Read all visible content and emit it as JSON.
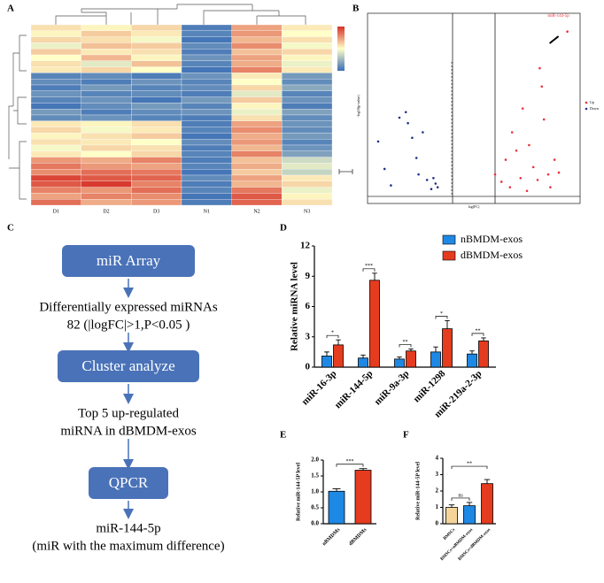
{
  "chart_data": [
    {
      "panel": "A",
      "type": "heatmap",
      "columns": [
        "D1",
        "D2",
        "D3",
        "N1",
        "N2",
        "N3"
      ],
      "values": [
        [
          0.3,
          0.1,
          0.4,
          -1.8,
          0.9,
          0.2
        ],
        [
          0.1,
          0.5,
          0.2,
          -1.7,
          1.0,
          0.0
        ],
        [
          0.4,
          0.3,
          -0.1,
          -1.9,
          0.7,
          0.3
        ],
        [
          -0.2,
          0.6,
          0.5,
          -1.6,
          1.1,
          -0.1
        ],
        [
          0.5,
          0.2,
          0.3,
          -1.8,
          0.6,
          0.4
        ],
        [
          0.0,
          0.7,
          0.1,
          -1.5,
          0.9,
          0.1
        ],
        [
          0.3,
          -0.3,
          0.6,
          -1.7,
          0.8,
          -0.2
        ],
        [
          0.2,
          0.4,
          0.0,
          -1.9,
          1.2,
          0.2
        ],
        [
          -1.7,
          -1.6,
          -1.8,
          -1.5,
          0.2,
          -1.4
        ],
        [
          -1.6,
          -1.8,
          -1.5,
          -1.7,
          0.0,
          -1.6
        ],
        [
          -1.8,
          -1.4,
          -1.7,
          -1.6,
          0.4,
          -1.2
        ],
        [
          -1.5,
          -1.7,
          -1.6,
          -1.8,
          -0.3,
          -1.7
        ],
        [
          -1.7,
          -1.5,
          -1.9,
          -1.4,
          0.5,
          -1.5
        ],
        [
          -1.9,
          -1.6,
          -1.4,
          -1.7,
          0.1,
          -1.8
        ],
        [
          -1.4,
          -1.8,
          -1.6,
          -1.5,
          -0.2,
          -1.3
        ],
        [
          -1.6,
          -1.5,
          -1.7,
          -1.8,
          0.3,
          -1.6
        ],
        [
          0.2,
          0.1,
          0.3,
          -1.8,
          0.9,
          -1.5
        ],
        [
          0.4,
          -0.1,
          0.2,
          -1.7,
          1.1,
          -1.6
        ],
        [
          0.1,
          0.3,
          0.5,
          -1.9,
          0.8,
          -1.4
        ],
        [
          0.3,
          0.2,
          0.0,
          -1.6,
          1.0,
          -1.7
        ],
        [
          -0.1,
          0.4,
          0.3,
          -1.8,
          0.7,
          -1.5
        ],
        [
          0.2,
          0.0,
          0.4,
          -1.7,
          1.2,
          -1.3
        ],
        [
          1.0,
          0.8,
          1.2,
          -1.8,
          0.6,
          -0.5
        ],
        [
          1.3,
          1.0,
          0.9,
          -1.7,
          0.8,
          -0.3
        ],
        [
          1.1,
          1.4,
          1.3,
          -1.9,
          0.5,
          -0.6
        ],
        [
          1.8,
          1.6,
          1.5,
          -1.6,
          0.9,
          0.2
        ],
        [
          1.6,
          1.9,
          1.2,
          -1.8,
          0.7,
          0.4
        ],
        [
          1.2,
          1.0,
          1.4,
          -1.7,
          1.3,
          -0.2
        ],
        [
          0.9,
          1.2,
          1.1,
          -1.9,
          1.6,
          0.1
        ],
        [
          1.4,
          0.8,
          1.0,
          -1.8,
          1.5,
          0.3
        ]
      ]
    },
    {
      "panel": "B",
      "type": "scatter",
      "xlabel": "log(FC)",
      "ylabel": "-log10(p-value)",
      "xlim": [
        -5,
        5
      ],
      "ylim": [
        0,
        10
      ],
      "vlines": [
        -1,
        1
      ],
      "annotation": "miR-144-5p",
      "series": [
        {
          "name": "Up",
          "color": "#e8323c",
          "x": [
            1.0,
            1.3,
            1.5,
            1.7,
            1.8,
            2.0,
            2.2,
            2.3,
            2.5,
            2.6,
            2.8,
            3.0,
            3.1,
            3.2,
            3.3,
            3.5,
            3.6,
            3.8,
            4.0,
            4.4
          ],
          "y": [
            1.2,
            0.8,
            2.0,
            0.5,
            3.5,
            2.5,
            1.0,
            4.8,
            0.3,
            2.8,
            1.6,
            0.9,
            7.0,
            6.0,
            4.2,
            1.2,
            0.5,
            2.0,
            1.3,
            9.0
          ]
        },
        {
          "name": "Down",
          "color": "#22308c",
          "x": [
            -4.5,
            -4.2,
            -3.9,
            -3.5,
            -3.2,
            -3.1,
            -2.9,
            -2.7,
            -2.6,
            -2.2,
            -2.0,
            -1.9,
            -1.7,
            -2.4,
            -1.8
          ],
          "y": [
            3.0,
            1.5,
            0.6,
            4.3,
            4.6,
            4.0,
            3.2,
            2.1,
            1.2,
            0.9,
            0.4,
            1.0,
            0.5,
            3.5,
            0.7
          ]
        }
      ]
    },
    {
      "panel": "D",
      "type": "bar",
      "ylabel": "Relative miRNA level",
      "categories": [
        "miR-16-3p",
        "miR-144-5p",
        "miR-9a-3p",
        "miR-1298",
        "miR-219a-2-3p"
      ],
      "ylim": [
        0,
        12
      ],
      "yticks": [
        0,
        3,
        6,
        9,
        12
      ],
      "series": [
        {
          "name": "nBMDM-exos",
          "color": "#1e88e5",
          "values": [
            1.1,
            0.9,
            0.8,
            1.5,
            1.3
          ],
          "errors": [
            0.4,
            0.3,
            0.2,
            0.5,
            0.3
          ]
        },
        {
          "name": "dBMDM-exos",
          "color": "#e53b1f",
          "values": [
            2.2,
            8.6,
            1.6,
            3.8,
            2.6
          ],
          "errors": [
            0.5,
            0.7,
            0.2,
            0.8,
            0.3
          ]
        }
      ],
      "significance": [
        "*",
        "***",
        "**",
        "*",
        "**"
      ]
    },
    {
      "panel": "E",
      "type": "bar",
      "ylabel": "Relative miR-144-5P level",
      "categories": [
        "nBMDMs",
        "dBMDMs"
      ],
      "values": [
        1.02,
        1.68
      ],
      "errors": [
        0.08,
        0.05
      ],
      "colors": [
        "#1e88e5",
        "#e53b1f"
      ],
      "ylim": [
        0,
        2
      ],
      "yticks": [
        {
          "value": 0,
          "label": "0.0"
        },
        {
          "value": 0.5,
          "label": "0.5"
        },
        {
          "value": 1,
          "label": "1.0"
        },
        {
          "value": 1.5,
          "label": "1.5"
        },
        {
          "value": 2,
          "label": "2.0"
        }
      ],
      "significance": [
        "***"
      ]
    },
    {
      "panel": "F",
      "type": "bar",
      "ylabel": "Relative miR-144-5P level",
      "categories": [
        "BMSCs",
        "BMSCs+nBMDM-exos",
        "BMSCs+dBMDM-exos"
      ],
      "values": [
        1.0,
        1.1,
        2.45
      ],
      "errors": [
        0.15,
        0.2,
        0.25
      ],
      "colors": [
        "#f5d49a",
        "#1e88e5",
        "#e53b1f"
      ],
      "ylim": [
        0,
        4
      ],
      "yticks": [
        0,
        1,
        2,
        3,
        4
      ],
      "significance": [
        "ns",
        "**"
      ]
    }
  ],
  "flowchart": {
    "panel": "C",
    "boxes": [
      "miR Array",
      "Cluster analyze",
      "QPCR"
    ],
    "notes": [
      [
        "Differentially expressed miRNAs",
        "82 (|logFC|>1,P<0.05 )"
      ],
      [
        "Top 5 up-regulated",
        "miRNA in dBMDM-exos"
      ],
      [
        "miR-144-5p",
        "(miR with the maximum difference)"
      ]
    ]
  }
}
